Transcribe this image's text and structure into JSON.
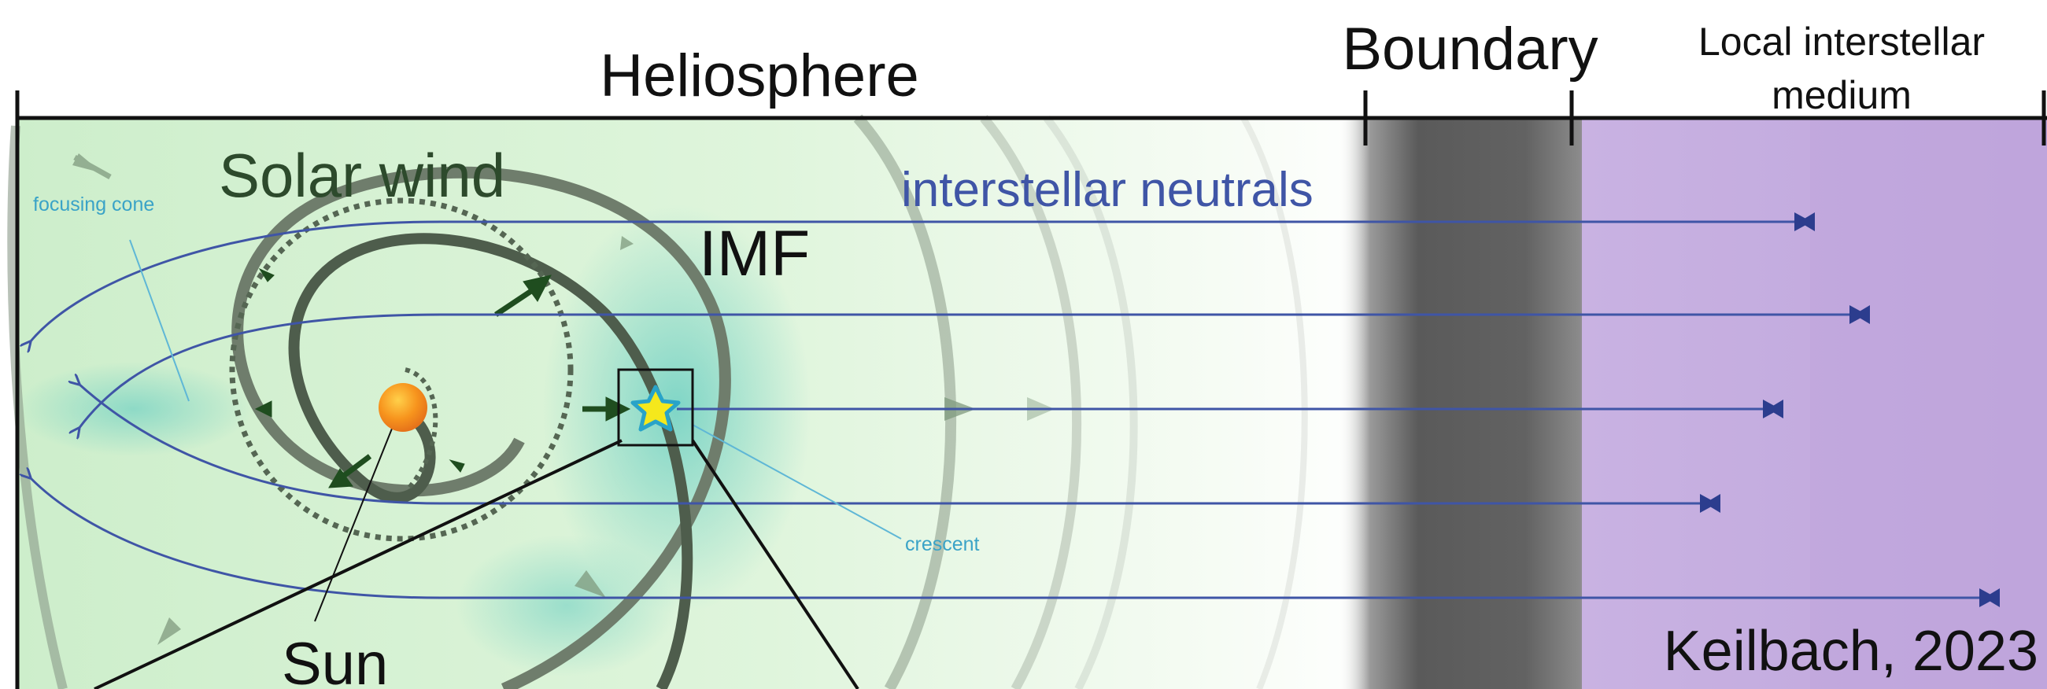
{
  "labels": {
    "heliosphere": "Heliosphere",
    "boundary": "Boundary",
    "lism_line1": "Local interstellar",
    "lism_line2": "medium",
    "solar_wind": "Solar wind",
    "imf": "IMF",
    "interstellar_neutrals": "interstellar neutrals",
    "focusing_cone": "focusing cone",
    "crescent": "crescent",
    "sun": "Sun",
    "credit": "Keilbach, 2023"
  },
  "colors": {
    "heliosphere_bg": "#d8f3d6",
    "teal_glow": "#7fd6c8",
    "boundary_gray": "#5c5c5c",
    "lism_purple": "#c2a9dd",
    "neutral_arrow": "#3f55a6",
    "spiral": "#5a6b58",
    "wind_arrow": "#1f4d1f",
    "sun": "#f7941d",
    "star": "#f5e81c",
    "star_outline": "#29a3c8",
    "cone_label": "#3aa3c7"
  }
}
